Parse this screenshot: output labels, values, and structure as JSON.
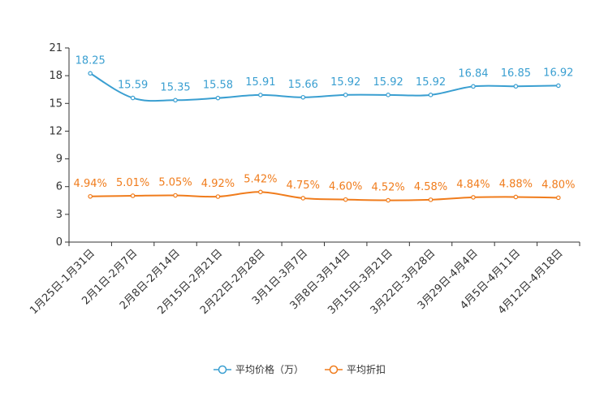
{
  "chart_data": {
    "type": "line",
    "categories": [
      "1月25日-1月31日",
      "2月1日-2月7日",
      "2月8日-2月14日",
      "2月15日-2月21日",
      "2月22日-2月28日",
      "3月1日-3月7日",
      "3月8日-3月14日",
      "3月15日-3月21日",
      "3月22日-3月28日",
      "3月29日-4月4日",
      "4月5日-4月11日",
      "4月12日-4月18日"
    ],
    "ylim": [
      0,
      21
    ],
    "yticks": [
      0,
      3,
      6,
      9,
      12,
      15,
      18,
      21
    ],
    "ytick_labels": [
      "0",
      "3",
      "6",
      "9",
      "12",
      "15",
      "18",
      "21"
    ],
    "series": [
      {
        "name": "平均价格（万）",
        "color": "#3a9fd1",
        "values": [
          18.25,
          15.59,
          15.35,
          15.58,
          15.91,
          15.66,
          15.92,
          15.92,
          15.92,
          16.84,
          16.85,
          16.92
        ],
        "labels": [
          "18.25",
          "15.59",
          "15.35",
          "15.58",
          "15.91",
          "15.66",
          "15.92",
          "15.92",
          "15.92",
          "16.84",
          "16.85",
          "16.92"
        ]
      },
      {
        "name": "平均折扣",
        "color": "#f07c1c",
        "values": [
          4.94,
          5.01,
          5.05,
          4.92,
          5.42,
          4.75,
          4.6,
          4.52,
          4.58,
          4.84,
          4.88,
          4.8
        ],
        "labels": [
          "4.94%",
          "5.01%",
          "5.05%",
          "4.92%",
          "5.42%",
          "4.75%",
          "4.60%",
          "4.52%",
          "4.58%",
          "4.84%",
          "4.88%",
          "4.80%"
        ]
      }
    ],
    "legend_position": "bottom-center",
    "grid": false,
    "axis_color": "#333333"
  }
}
